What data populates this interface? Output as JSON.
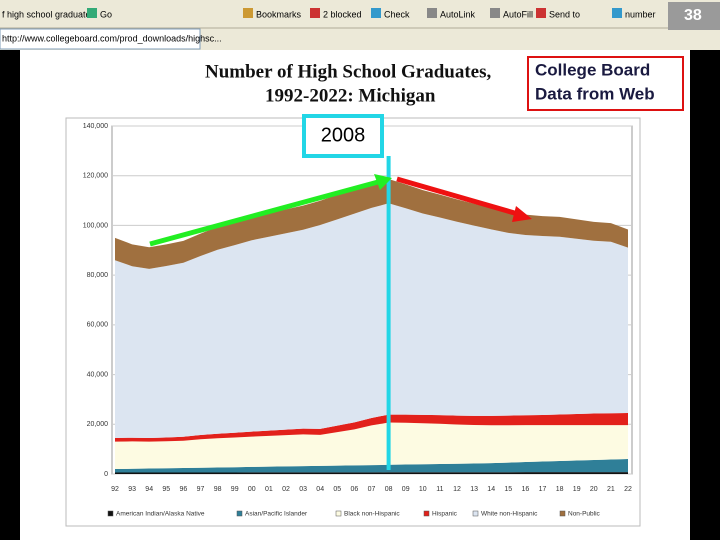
{
  "ui": {
    "toolbar": [
      "Go",
      "Bookmarks",
      "2 blocked",
      "Check",
      "AutoLink",
      "AutoFill",
      "Send to",
      "number"
    ],
    "tab_text": "f high school graduates",
    "url": "http://www.collegeboard.com/prod_downloads/highsc...",
    "slide_number": "38",
    "callout": [
      "College Board",
      "Data from Web"
    ],
    "year_label": "2008"
  },
  "chart_data": {
    "type": "stacked-area",
    "title": [
      "Number of High School Graduates,",
      "1992-2022:  Michigan"
    ],
    "categories": [
      "92",
      "93",
      "94",
      "95",
      "96",
      "97",
      "98",
      "99",
      "00",
      "01",
      "02",
      "03",
      "04",
      "05",
      "06",
      "07",
      "08",
      "09",
      "10",
      "11",
      "12",
      "13",
      "14",
      "15",
      "16",
      "17",
      "18",
      "19",
      "20",
      "21",
      "22"
    ],
    "ylim": [
      0,
      140000
    ],
    "yticks": [
      0,
      {
        "value": 20000,
        "label": "20,000"
      },
      {
        "value": 40000,
        "label": "40,000"
      },
      {
        "value": 60000,
        "label": "60,000"
      },
      {
        "value": 80000,
        "label": "80,000"
      },
      {
        "value": 100000,
        "label": "100,000"
      },
      {
        "value": 120000,
        "label": "120,000"
      },
      {
        "value": 140000,
        "label": "140,000"
      }
    ],
    "series": [
      {
        "name": "American Indian/Alaska Native",
        "color": "#111111",
        "values": [
          600,
          600,
          600,
          600,
          600,
          600,
          600,
          600,
          650,
          650,
          650,
          650,
          650,
          650,
          650,
          650,
          700,
          700,
          700,
          700,
          700,
          700,
          700,
          700,
          750,
          750,
          750,
          750,
          750,
          750,
          750
        ]
      },
      {
        "name": "Asian/Pacific Islander",
        "color": "#2f7f98",
        "values": [
          1400,
          1500,
          1600,
          1700,
          1800,
          1900,
          2000,
          2100,
          2200,
          2300,
          2400,
          2500,
          2600,
          2700,
          2800,
          2900,
          3000,
          3100,
          3200,
          3300,
          3400,
          3500,
          3700,
          3900,
          4100,
          4300,
          4500,
          4700,
          4900,
          5100,
          5300
        ]
      },
      {
        "name": "Black non-Hispanic",
        "color": "#fdfbe2",
        "values": [
          11000,
          11000,
          10800,
          10900,
          11000,
          11500,
          11800,
          12000,
          12200,
          12400,
          12600,
          12800,
          12500,
          13500,
          14500,
          16000,
          17000,
          16800,
          16500,
          16200,
          15800,
          15500,
          15200,
          15000,
          14800,
          14600,
          14400,
          14200,
          14000,
          13800,
          13600
        ]
      },
      {
        "name": "Hispanic",
        "color": "#e2211b",
        "values": [
          1500,
          1500,
          1500,
          1500,
          1600,
          1700,
          1800,
          1900,
          2000,
          2100,
          2200,
          2300,
          2400,
          2600,
          2800,
          3000,
          3200,
          3300,
          3400,
          3500,
          3600,
          3700,
          3800,
          3900,
          4000,
          4100,
          4300,
          4500,
          4700,
          4800,
          4900
        ]
      },
      {
        "name": "White non-Hispanic",
        "color": "#dce5f1",
        "values": [
          71500,
          69000,
          68000,
          69000,
          70000,
          72000,
          74000,
          75500,
          77000,
          78000,
          79000,
          80000,
          82000,
          83000,
          84000,
          84500,
          85000,
          83000,
          81000,
          79500,
          78000,
          76500,
          75000,
          73500,
          72500,
          72000,
          71500,
          70500,
          69500,
          69000,
          66500
        ]
      },
      {
        "name": "Non-Public",
        "color": "#a0703f",
        "values": [
          9000,
          8800,
          8700,
          8700,
          8800,
          9000,
          9200,
          9300,
          9400,
          9500,
          9600,
          9700,
          9800,
          9900,
          10000,
          10000,
          9800,
          9600,
          9400,
          9200,
          9000,
          8800,
          8600,
          8400,
          8200,
          8000,
          8000,
          7800,
          7600,
          7500,
          7300
        ]
      }
    ],
    "grid": true
  }
}
